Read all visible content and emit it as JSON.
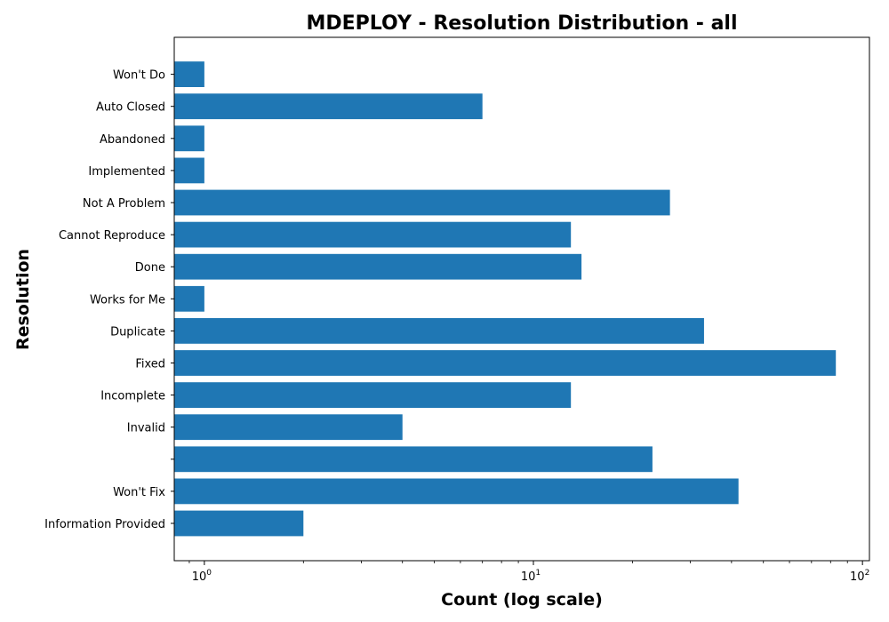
{
  "chart_data": {
    "type": "bar",
    "orientation": "horizontal",
    "title": "MDEPLOY - Resolution Distribution - all",
    "xlabel": "Count (log scale)",
    "ylabel": "Resolution",
    "x_scale": "log",
    "xlim": [
      0.81,
      105
    ],
    "categories": [
      "Information Provided",
      "Won't Fix",
      "",
      "Invalid",
      "Incomplete",
      "Fixed",
      "Duplicate",
      "Works for Me",
      "Done",
      "Cannot Reproduce",
      "Not A Problem",
      "Implemented",
      "Abandoned",
      "Auto Closed",
      "Won't Do"
    ],
    "values": [
      2,
      42,
      23,
      4,
      13,
      83,
      33,
      1,
      14,
      13,
      26,
      1,
      1,
      7,
      1
    ],
    "x_ticks": [
      {
        "base": "10",
        "exp": "0",
        "value": 1
      },
      {
        "base": "10",
        "exp": "1",
        "value": 10
      },
      {
        "base": "10",
        "exp": "2",
        "value": 100
      }
    ],
    "bar_color": "#1f77b4",
    "grid": false,
    "legend": "none"
  }
}
